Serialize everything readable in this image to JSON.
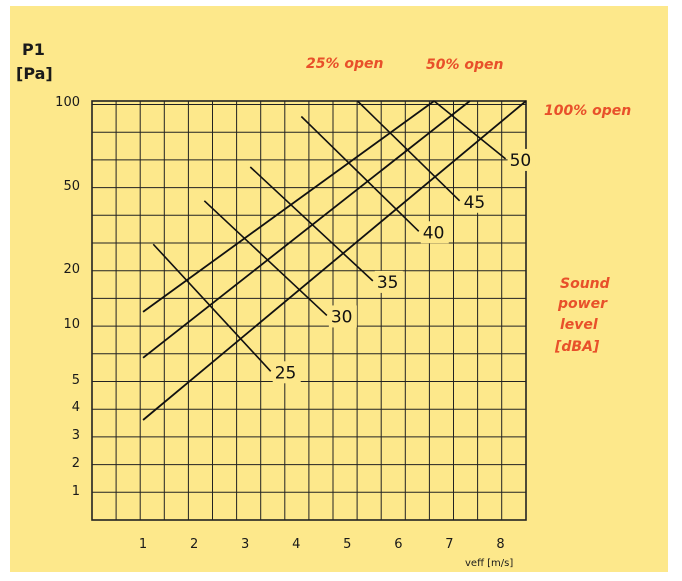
{
  "colors": {
    "background": "#fde88b",
    "grid": "#222222",
    "lines": "#111111",
    "annotation": "#e8502a"
  },
  "chart_data": {
    "type": "line",
    "ylabel": "P1",
    "ylabel_unit": "[Pa]",
    "xlabel": "veff [m/s]",
    "y_tick_labels": [
      "100",
      "50",
      "20",
      "10",
      "5",
      "4",
      "3",
      "2",
      "1"
    ],
    "x_tick_labels": [
      "1",
      "2",
      "3",
      "4",
      "5",
      "6",
      "7",
      "8"
    ],
    "xlim": [
      0,
      8.5
    ],
    "series_labels": [
      "25% open",
      "50% open",
      "100% open"
    ],
    "series": [
      {
        "name": "25% open",
        "points": [
          [
            1,
            11.5
          ],
          [
            6.7,
            100
          ]
        ]
      },
      {
        "name": "50% open",
        "points": [
          [
            1,
            6.5
          ],
          [
            7.4,
            100
          ]
        ]
      },
      {
        "name": "100% open",
        "points": [
          [
            1,
            3.5
          ],
          [
            8.5,
            100
          ]
        ]
      }
    ],
    "sound_power_title": [
      "Sound",
      "power",
      "level",
      "[dBA]"
    ],
    "sound_power_lines": [
      {
        "label": "25",
        "from": [
          1.2,
          26
        ],
        "to": [
          3.5,
          5.5
        ]
      },
      {
        "label": "30",
        "from": [
          2.2,
          42
        ],
        "to": [
          4.6,
          11
        ]
      },
      {
        "label": "35",
        "from": [
          3.1,
          58
        ],
        "to": [
          5.5,
          17
        ]
      },
      {
        "label": "40",
        "from": [
          4.1,
          88
        ],
        "to": [
          6.4,
          30
        ]
      },
      {
        "label": "45",
        "from": [
          5.2,
          100
        ],
        "to": [
          7.2,
          42
        ]
      },
      {
        "label": "50",
        "from": [
          6.7,
          100
        ],
        "to": [
          8.1,
          62
        ]
      }
    ]
  }
}
